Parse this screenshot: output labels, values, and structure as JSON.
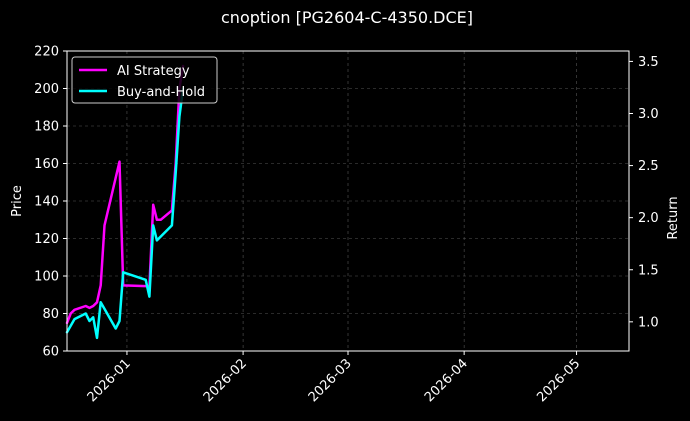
{
  "chart_data": {
    "type": "line",
    "title": "cnoption [PG2604-C-4350.DCE]",
    "xlabel": "",
    "ylabel_left": "Price",
    "ylabel_right": "Return",
    "x_ticks": [
      "2026-01",
      "2026-02",
      "2026-03",
      "2026-04",
      "2026-05"
    ],
    "x_range": [
      "2025-12-16",
      "2026-05-15"
    ],
    "ylim_left": [
      60,
      220
    ],
    "yticks_left": [
      60,
      80,
      100,
      120,
      140,
      160,
      180,
      200,
      220
    ],
    "ylim_right": [
      0.72,
      3.6
    ],
    "yticks_right": [
      1.0,
      1.5,
      2.0,
      2.5,
      3.0,
      3.5
    ],
    "grid": true,
    "legend_position": "upper-left",
    "series": [
      {
        "name": "AI Strategy",
        "color": "#ff00ff",
        "axis": "left",
        "points": [
          [
            "2025-12-16",
            75
          ],
          [
            "2025-12-17",
            80
          ],
          [
            "2025-12-18",
            82
          ],
          [
            "2025-12-21",
            84
          ],
          [
            "2025-12-22",
            83
          ],
          [
            "2025-12-23",
            84
          ],
          [
            "2025-12-24",
            86
          ],
          [
            "2025-12-25",
            95
          ],
          [
            "2025-12-26",
            127
          ],
          [
            "2025-12-30",
            161
          ],
          [
            "2025-12-31",
            95
          ],
          [
            "2026-01-07",
            94.5
          ],
          [
            "2026-01-08",
            138
          ],
          [
            "2026-01-09",
            130
          ],
          [
            "2026-01-10",
            130
          ],
          [
            "2026-01-13",
            135
          ],
          [
            "2026-01-14",
            160
          ],
          [
            "2026-01-15",
            200
          ],
          [
            "2026-01-16",
            212
          ]
        ]
      },
      {
        "name": "Buy-and-Hold",
        "color": "#00ffff",
        "axis": "left",
        "points": [
          [
            "2025-12-16",
            70
          ],
          [
            "2025-12-18",
            77
          ],
          [
            "2025-12-21",
            80
          ],
          [
            "2025-12-22",
            76
          ],
          [
            "2025-12-23",
            78
          ],
          [
            "2025-12-24",
            67
          ],
          [
            "2025-12-25",
            86
          ],
          [
            "2025-12-29",
            72
          ],
          [
            "2025-12-30",
            76
          ],
          [
            "2025-12-31",
            102
          ],
          [
            "2026-01-06",
            98
          ],
          [
            "2026-01-07",
            89
          ],
          [
            "2026-01-08",
            127
          ],
          [
            "2026-01-09",
            119
          ],
          [
            "2026-01-13",
            127
          ],
          [
            "2026-01-14",
            155
          ],
          [
            "2026-01-15",
            185
          ],
          [
            "2026-01-16",
            200
          ]
        ]
      }
    ]
  }
}
